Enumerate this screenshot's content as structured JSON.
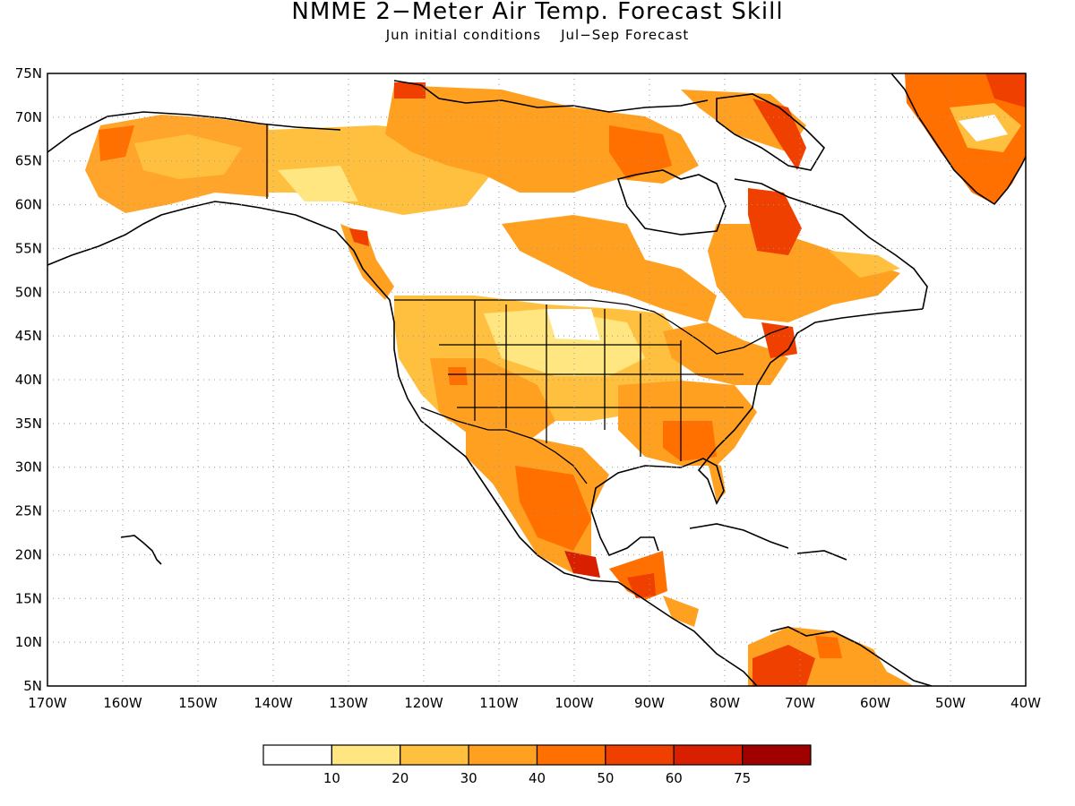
{
  "title": "NMME 2−Meter Air Temp. Forecast Skill",
  "subtitle": {
    "left": "Jun initial conditions",
    "right": "Jul−Sep Forecast"
  },
  "map": {
    "lon_range": [
      -170,
      -40
    ],
    "lat_range": [
      5,
      75
    ],
    "lat_labels": [
      "75N",
      "70N",
      "65N",
      "60N",
      "55N",
      "50N",
      "45N",
      "40N",
      "35N",
      "30N",
      "25N",
      "20N",
      "15N",
      "10N",
      "5N"
    ],
    "lon_labels": [
      "170W",
      "160W",
      "150W",
      "140W",
      "130W",
      "120W",
      "110W",
      "100W",
      "90W",
      "80W",
      "70W",
      "60W",
      "50W",
      "40W"
    ],
    "gridlines": "dotted"
  },
  "colorbar": {
    "labels": [
      "10",
      "20",
      "30",
      "40",
      "50",
      "60",
      "75"
    ],
    "colors": [
      "#ffffff",
      "#ffe680",
      "#ffc040",
      "#ffa020",
      "#ff7000",
      "#f04000",
      "#d82000",
      "#a00000"
    ]
  }
}
